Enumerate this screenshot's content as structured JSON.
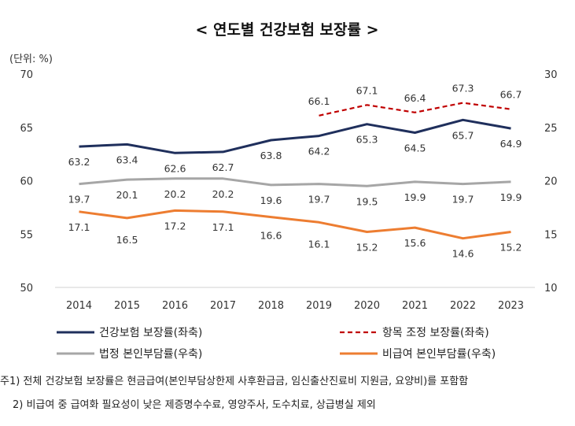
{
  "chart_data": {
    "type": "line",
    "title": "< 연도별 건강보험 보장률 >",
    "unit_label": "(단위: %)",
    "categories": [
      "2014",
      "2015",
      "2016",
      "2017",
      "2018",
      "2019",
      "2020",
      "2021",
      "2022",
      "2023"
    ],
    "y_left": {
      "ylim": [
        50,
        70
      ],
      "ticks": [
        70,
        65,
        60,
        55,
        50
      ]
    },
    "y_right": {
      "ylim": [
        10,
        30
      ],
      "ticks": [
        30,
        25,
        20,
        15,
        10
      ]
    },
    "grid": false,
    "legend_position": "bottom",
    "series": [
      {
        "name": "건강보험 보장률(좌축)",
        "axis": "left",
        "color": "#1f2f5c",
        "dash": false,
        "values": [
          63.2,
          63.4,
          62.6,
          62.7,
          63.8,
          64.2,
          65.3,
          64.5,
          65.7,
          64.9
        ],
        "labels": [
          "63.2",
          "63.4",
          "62.6",
          "62.7",
          "63.8",
          "64.2",
          "65.3",
          "64.5",
          "65.7",
          "64.9"
        ]
      },
      {
        "name": "항목 조정 보장률(좌축)",
        "axis": "left",
        "color": "#c00000",
        "dash": true,
        "values": [
          null,
          null,
          null,
          null,
          null,
          66.1,
          67.1,
          66.4,
          67.3,
          66.7
        ],
        "labels": [
          "",
          "",
          "",
          "",
          "",
          "66.1",
          "67.1",
          "66.4",
          "67.3",
          "66.7"
        ]
      },
      {
        "name": "법정 본인부담률(우축)",
        "axis": "right",
        "color": "#a6a6a6",
        "dash": false,
        "values": [
          19.7,
          20.1,
          20.2,
          20.2,
          19.6,
          19.7,
          19.5,
          19.9,
          19.7,
          19.9
        ],
        "labels": [
          "19.7",
          "20.1",
          "20.2",
          "20.2",
          "19.6",
          "19.7",
          "19.5",
          "19.9",
          "19.7",
          "19.9"
        ]
      },
      {
        "name": "비급여 본인부담률(우축)",
        "axis": "right",
        "color": "#ed7d31",
        "dash": false,
        "values": [
          17.1,
          16.5,
          17.2,
          17.1,
          16.6,
          16.1,
          15.2,
          15.6,
          14.6,
          15.2
        ],
        "labels": [
          "17.1",
          "16.5",
          "17.2",
          "17.1",
          "16.6",
          "16.1",
          "15.2",
          "15.6",
          "14.6",
          "15.2"
        ]
      }
    ]
  },
  "notes": {
    "note1": "주1) 전체 건강보험 보장률은 현금급여(본인부담상한제 사후환급금, 임신출산진료비 지원금, 요양비)를 포함함",
    "note2": "2) 비급여 중 급여화 필요성이 낮은 제증명수수료, 영양주사, 도수치료, 상급병실 제외"
  }
}
